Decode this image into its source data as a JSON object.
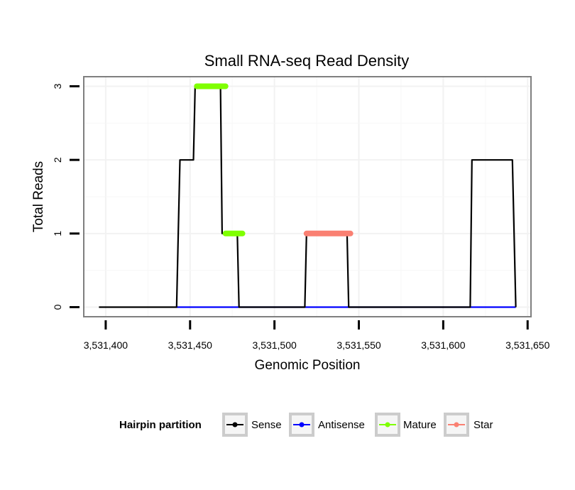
{
  "chart_data": {
    "type": "line",
    "title": "Small RNA-seq Read Density",
    "xlabel": "Genomic Position",
    "ylabel": "Total Reads",
    "xlim": [
      3531387,
      3531652
    ],
    "ylim": [
      -0.13,
      3.13
    ],
    "x_ticks": [
      3531400,
      3531450,
      3531500,
      3531550,
      3531600,
      3531650
    ],
    "x_tick_labels": [
      "3,531,400",
      "3,531,450",
      "3,531,500",
      "3,531,550",
      "3,531,600",
      "3,531,650"
    ],
    "y_ticks": [
      0,
      1,
      2,
      3
    ],
    "y_tick_labels": [
      "0",
      "1",
      "2",
      "3"
    ],
    "grid": true,
    "legend": {
      "title": "Hairpin partition",
      "placement": "bottom",
      "entries": [
        {
          "name": "Sense",
          "color": "#000000"
        },
        {
          "name": "Antisense",
          "color": "#0000ff"
        },
        {
          "name": "Mature",
          "color": "#7fff00"
        },
        {
          "name": "Star",
          "color": "#fa8072"
        }
      ]
    },
    "series": [
      {
        "name": "Sense",
        "color": "#000000",
        "points": [
          [
            3531396,
            0
          ],
          [
            3531442,
            0
          ],
          [
            3531443,
            1
          ],
          [
            3531444,
            2
          ],
          [
            3531452,
            2
          ],
          [
            3531453,
            3
          ],
          [
            3531468,
            3
          ],
          [
            3531469,
            1
          ],
          [
            3531478,
            1
          ],
          [
            3531479,
            0
          ],
          [
            3531518,
            0
          ],
          [
            3531519,
            1
          ],
          [
            3531543,
            1
          ],
          [
            3531544,
            0
          ],
          [
            3531616,
            0
          ],
          [
            3531617,
            2
          ],
          [
            3531641,
            2
          ],
          [
            3531642,
            1
          ],
          [
            3531643,
            0
          ]
        ]
      },
      {
        "name": "Antisense",
        "color": "#0000ff",
        "points": [
          [
            3531442,
            0
          ],
          [
            3531643,
            0
          ]
        ]
      },
      {
        "name": "Mature",
        "color": "#7fff00",
        "segments": [
          [
            [
              3531454,
              3
            ],
            [
              3531471,
              3
            ]
          ],
          [
            [
              3531471,
              1
            ],
            [
              3531481,
              1
            ]
          ]
        ]
      },
      {
        "name": "Star",
        "color": "#fa8072",
        "segments": [
          [
            [
              3531519,
              1
            ],
            [
              3531545,
              1
            ]
          ]
        ]
      }
    ]
  }
}
